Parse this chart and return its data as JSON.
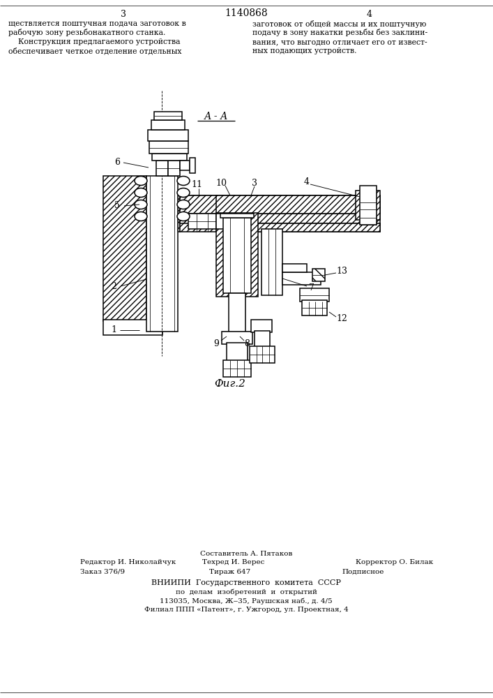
{
  "lw": 1.1,
  "tlw": 0.55,
  "left_col": [
    "ществляется поштучная подача заготовок в",
    "рабочую зону резьбонакатного станка.",
    "    Конструкция предлагаемого устройства",
    "обеспечивает четкое отделение отдельных"
  ],
  "right_col": [
    "заготовок от общей массы и их поштучную",
    "подачу в зону накатки резьбы без заклини-",
    "вания, что выгодно отличает его от извест-",
    "ных подающих устройств."
  ],
  "footer_rows": [
    [
      353,
      207,
      "Составитель А. Пятаков",
      "center",
      7.5
    ],
    [
      115,
      194,
      "Редактор И. Николайчук",
      "left",
      7.5
    ],
    [
      335,
      194,
      "Техред И. Верес",
      "center",
      7.5
    ],
    [
      510,
      194,
      "Корректор О. Билак",
      "left",
      7.5
    ],
    [
      115,
      181,
      "Заказ 376/9",
      "left",
      7.5
    ],
    [
      330,
      181,
      "Тираж 647",
      "center",
      7.5
    ],
    [
      490,
      181,
      "Подписное",
      "left",
      7.5
    ],
    [
      353,
      165,
      "ВНИИПИ  Государственного  комитета  СССР",
      "center",
      8
    ],
    [
      353,
      152,
      "по  делам  изобретений  и  открытий",
      "center",
      7.5
    ],
    [
      353,
      139,
      "113035, Москва, Ж‒35, Раушская наб., д. 4/5",
      "center",
      7.5
    ],
    [
      353,
      126,
      "Филиал ППП «Патент», г. Ужгород, ул. Проектная, 4",
      "center",
      7.5
    ]
  ]
}
